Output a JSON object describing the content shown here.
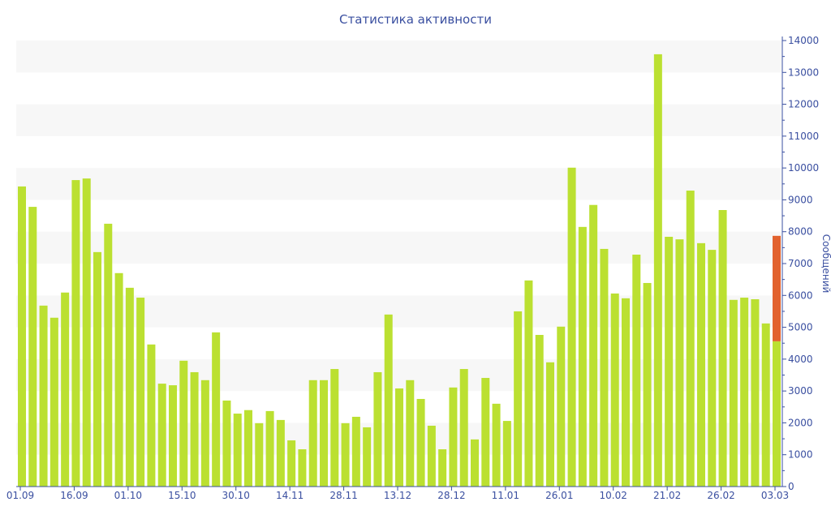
{
  "chart_data": {
    "type": "bar",
    "title": "Статистика активности",
    "xlabel": "",
    "ylabel": "Сообщений",
    "ylim": [
      0,
      14000
    ],
    "yticks": [
      0,
      1000,
      2000,
      3000,
      4000,
      5000,
      6000,
      7000,
      8000,
      9000,
      10000,
      11000,
      12000,
      13000,
      14000
    ],
    "xtick_labels": [
      {
        "label": "01.09",
        "index": 0
      },
      {
        "label": "16.09",
        "index": 5
      },
      {
        "label": "01.10",
        "index": 10
      },
      {
        "label": "15.10",
        "index": 15
      },
      {
        "label": "30.10",
        "index": 20
      },
      {
        "label": "14.11",
        "index": 25
      },
      {
        "label": "28.11",
        "index": 30
      },
      {
        "label": "13.12",
        "index": 35
      },
      {
        "label": "28.12",
        "index": 40
      },
      {
        "label": "11.01",
        "index": 45
      },
      {
        "label": "26.01",
        "index": 50
      },
      {
        "label": "10.02",
        "index": 55
      },
      {
        "label": "21.02",
        "index": 60
      },
      {
        "label": "26.02",
        "index": 65
      },
      {
        "label": "03.03",
        "index": 70
      }
    ],
    "grid": "alternating horizontal bands",
    "y_axis_position": "right",
    "colors": {
      "bar": "#bbe031",
      "projection": "#e2622e",
      "band": "#f7f7f7",
      "axis": "#3a4fa0"
    },
    "values": [
      9420,
      8780,
      5680,
      5300,
      6090,
      9620,
      9670,
      7360,
      8250,
      6700,
      6240,
      5930,
      4460,
      3230,
      3180,
      3950,
      3590,
      3340,
      4840,
      2700,
      2290,
      2400,
      1990,
      2370,
      2090,
      1450,
      1170,
      3340,
      3340,
      3690,
      1990,
      2190,
      1860,
      3590,
      5400,
      3080,
      3340,
      2750,
      1910,
      1170,
      3110,
      3690,
      1480,
      3410,
      2600,
      2060,
      5500,
      6470,
      4760,
      3900,
      5020,
      10010,
      8150,
      8840,
      7460,
      6060,
      5910,
      7280,
      6390,
      13570,
      7840,
      7760,
      9290,
      7640,
      7430,
      8680,
      5860,
      5930,
      5880,
      5120,
      4560
    ],
    "projection": {
      "index": 70,
      "value": 7870
    }
  }
}
